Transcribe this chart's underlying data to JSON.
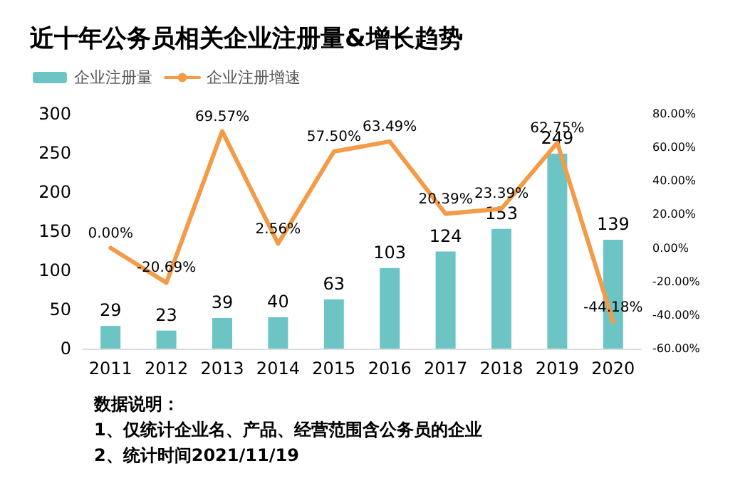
{
  "chart_data": {
    "type": "bar",
    "title": "近十年公务员相关企业注册量&增长趋势",
    "categories": [
      "2011",
      "2012",
      "2013",
      "2014",
      "2015",
      "2016",
      "2017",
      "2018",
      "2019",
      "2020"
    ],
    "series": [
      {
        "name": "企业注册量",
        "color": "#6cc5c4",
        "values": [
          29,
          23,
          39,
          40,
          63,
          103,
          124,
          153,
          249,
          139
        ],
        "value_labels": [
          "29",
          "23",
          "39",
          "40",
          "63",
          "103",
          "124",
          "153",
          "249",
          "139"
        ]
      },
      {
        "name": "企业注册增速",
        "type": "line",
        "axis": "y2",
        "color": "#f39b47",
        "values": [
          0,
          -20.69,
          69.57,
          2.56,
          57.5,
          63.49,
          20.39,
          23.39,
          62.75,
          -44.18
        ],
        "value_labels": [
          "0.00%",
          "-20.69%",
          "69.57%",
          "2.56%",
          "57.50%",
          "63.49%",
          "20.39%",
          "23.39%",
          "62.75%",
          "-44.18%"
        ]
      }
    ],
    "ylim": [
      0,
      300
    ],
    "yticks": [
      0,
      50,
      100,
      150,
      200,
      250,
      300
    ],
    "y2lim": [
      -60,
      80
    ],
    "y2ticks": [
      {
        "value": -60,
        "label": "-60.00%"
      },
      {
        "value": -40,
        "label": "-40.00%"
      },
      {
        "value": -20,
        "label": "-20.00%"
      },
      {
        "value": 0,
        "label": "0.00%"
      },
      {
        "value": 20,
        "label": "20.00%"
      },
      {
        "value": 40,
        "label": "40.00%"
      },
      {
        "value": 60,
        "label": "60.00%"
      },
      {
        "value": 80,
        "label": "80.00%"
      }
    ],
    "grid": false,
    "legend": "top left",
    "marker": "none",
    "line_style": "solid",
    "annotations": [
      "数据说明：",
      "1、仅统计企业名、产品、经营范围含公务员的企业",
      "2、统计时间2021/11/19"
    ]
  }
}
